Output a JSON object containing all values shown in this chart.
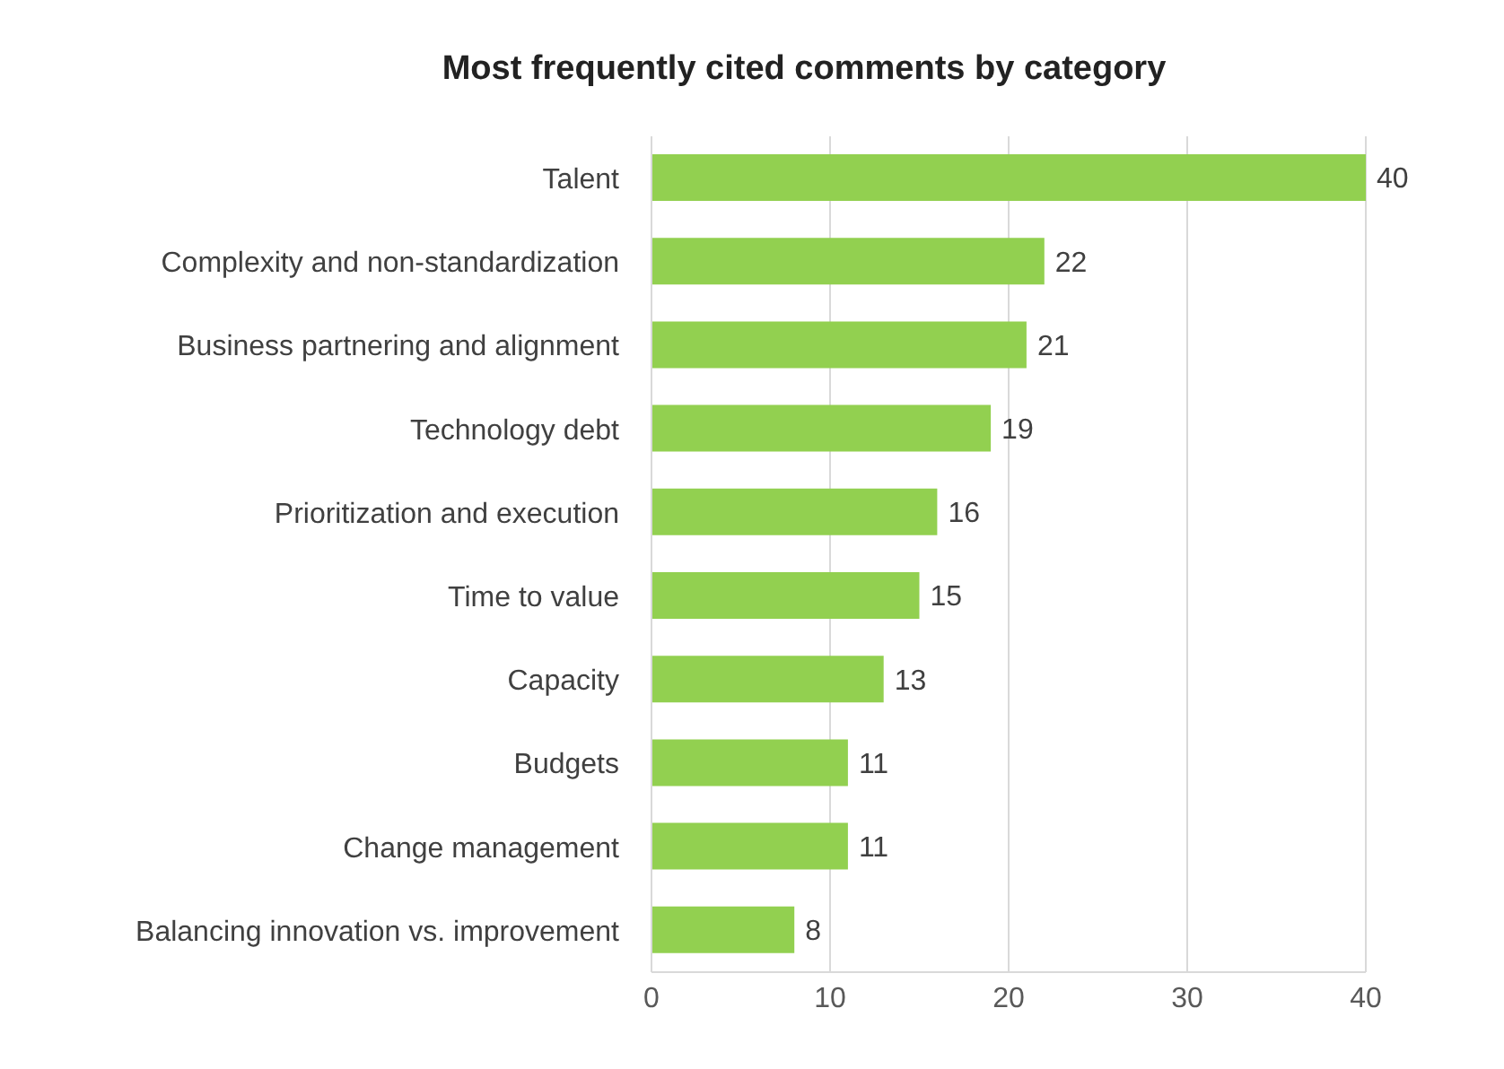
{
  "chart_data": {
    "type": "bar",
    "orientation": "horizontal",
    "title": "Most frequently cited comments by category",
    "categories": [
      "Talent",
      "Complexity and non-standardization",
      "Business partnering and alignment",
      "Technology debt",
      "Prioritization and execution",
      "Time to value",
      "Capacity",
      "Budgets",
      "Change management",
      "Balancing innovation vs. improvement"
    ],
    "values": [
      40,
      22,
      21,
      19,
      16,
      15,
      13,
      11,
      11,
      8
    ],
    "color": "#92d050",
    "xlim": [
      0,
      40
    ],
    "xticks": [
      0,
      10,
      20,
      30,
      40
    ],
    "grid": "x",
    "data_labels": true
  }
}
